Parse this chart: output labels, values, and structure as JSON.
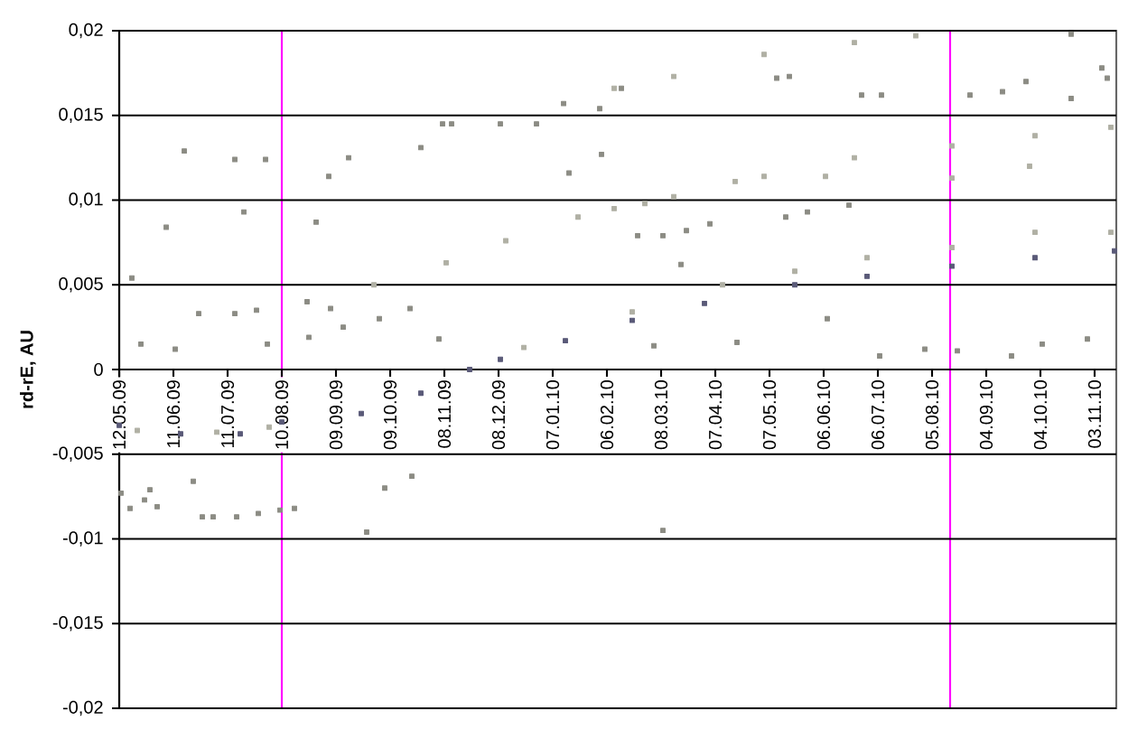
{
  "chart_data": {
    "type": "scatter",
    "ylabel": "rd-rE, AU",
    "marker": "square",
    "grid": "y",
    "xlim": [
      "2009-05-12",
      "2010-11-15"
    ],
    "xticks": [
      {
        "value": "2009-05-12",
        "label": "12.05.09"
      },
      {
        "value": "2009-06-11",
        "label": "11.06.09"
      },
      {
        "value": "2009-07-11",
        "label": "11.07.09"
      },
      {
        "value": "2009-08-10",
        "label": "10.08.09"
      },
      {
        "value": "2009-09-09",
        "label": "09.09.09"
      },
      {
        "value": "2009-10-09",
        "label": "09.10.09"
      },
      {
        "value": "2009-11-08",
        "label": "08.11.09"
      },
      {
        "value": "2009-12-08",
        "label": "08.12.09"
      },
      {
        "value": "2010-01-07",
        "label": "07.01.10"
      },
      {
        "value": "2010-02-06",
        "label": "06.02.10"
      },
      {
        "value": "2010-03-08",
        "label": "08.03.10"
      },
      {
        "value": "2010-04-07",
        "label": "07.04.10"
      },
      {
        "value": "2010-05-07",
        "label": "07.05.10"
      },
      {
        "value": "2010-06-06",
        "label": "06.06.10"
      },
      {
        "value": "2010-07-06",
        "label": "06.07.10"
      },
      {
        "value": "2010-08-05",
        "label": "05.08.10"
      },
      {
        "value": "2010-09-04",
        "label": "04.09.10"
      },
      {
        "value": "2010-10-04",
        "label": "04.10.10"
      },
      {
        "value": "2010-11-03",
        "label": "03.11.10"
      }
    ],
    "ylim": [
      -0.02,
      0.02
    ],
    "yticks": [
      {
        "value": -0.02,
        "label": "-0,02"
      },
      {
        "value": -0.015,
        "label": "-0,015"
      },
      {
        "value": -0.01,
        "label": "-0,01"
      },
      {
        "value": -0.005,
        "label": "-0,005"
      },
      0,
      {
        "value": 0.005,
        "label": "0,005"
      },
      {
        "value": 0.01,
        "label": "0,01"
      },
      {
        "value": 0.015,
        "label": "0,015"
      },
      {
        "value": 0.02,
        "label": "0,02"
      }
    ],
    "ref_lines": [
      {
        "axis": "x",
        "value": "2009-08-10",
        "color": "#ff00ff"
      },
      {
        "axis": "x",
        "value": "2010-08-15",
        "color": "#ff00ff"
      }
    ],
    "series": [
      {
        "color": "#5a5a78",
        "x": [
          "2009-05-12",
          "2009-06-15",
          "2009-07-18",
          "2009-08-10",
          "2009-09-23",
          "2009-10-26",
          "2009-11-22",
          "2009-12-09",
          "2010-01-14",
          "2010-02-20",
          "2010-04-01",
          "2010-05-21",
          "2010-06-30",
          "2010-08-16",
          "2010-10-01",
          "2010-11-14"
        ],
        "values": [
          -0.0033,
          -0.0038,
          -0.0038,
          -0.0031,
          -0.0026,
          -0.0014,
          0,
          0.0006,
          0.0017,
          0.0029,
          0.0039,
          0.005,
          0.0055,
          0.0061,
          0.0066,
          0.007
        ]
      },
      {
        "color": "#b0b0a4",
        "x": [
          "2009-05-22",
          "2009-07-05",
          "2009-08-03",
          "2009-12-22",
          "2010-02-20",
          "2010-04-11",
          "2010-05-21",
          "2010-06-30",
          "2010-08-16",
          "2010-10-01",
          "2010-11-12",
          "2009-09-30",
          "2009-11-09",
          "2009-12-12",
          "2010-01-21",
          "2010-02-10",
          "2010-03-15",
          "2010-05-04",
          "2010-06-23",
          "2010-08-16",
          "2010-10-01",
          "2010-11-12",
          "2010-02-27",
          "2010-04-18",
          "2010-06-07",
          "2010-08-16",
          "2010-09-28",
          "2010-02-10",
          "2010-03-15",
          "2010-05-04",
          "2010-06-23",
          "2010-07-27"
        ],
        "values": [
          -0.0036,
          -0.0037,
          -0.0034,
          0.0013,
          0.0034,
          0.005,
          0.0058,
          0.0066,
          0.0072,
          0.0081,
          0.0081,
          0.005,
          0.0063,
          0.0076,
          0.009,
          0.0095,
          0.0102,
          0.0114,
          0.0125,
          0.0132,
          0.0138,
          0.0143,
          0.0098,
          0.0111,
          0.0114,
          0.0113,
          0.012,
          0.0166,
          0.0173,
          0.0186,
          0.0193,
          0.0197
        ]
      },
      {
        "color": "#8c8c84",
        "x": [
          "2009-05-19",
          "2009-06-17",
          "2009-07-15",
          "2009-08-01",
          "2009-07-20",
          "2009-06-07",
          "2009-05-24",
          "2009-06-12",
          "2009-06-25",
          "2009-07-15",
          "2009-07-27",
          "2009-08-02",
          "2009-08-29",
          "2009-08-24",
          "2009-09-06",
          "2009-09-13",
          "2009-08-25",
          "2009-10-03",
          "2009-10-20",
          "2009-11-05",
          "2009-10-26",
          "2009-11-07",
          "2009-11-12",
          "2009-12-09",
          "2009-12-29",
          "2010-01-13",
          "2010-02-02",
          "2010-02-14",
          "2009-09-16",
          "2009-09-05",
          "2010-02-03",
          "2010-01-16",
          "2010-03-04",
          "2010-04-19",
          "2010-06-08",
          "2010-07-07",
          "2010-08-01",
          "2010-08-19",
          "2010-09-18",
          "2010-10-30",
          "2010-10-05",
          "2010-03-19",
          "2010-05-16",
          "2010-05-28",
          "2010-06-20",
          "2010-02-23",
          "2010-03-09",
          "2010-03-22",
          "2010-04-04",
          "2010-05-11",
          "2010-05-18",
          "2010-06-27",
          "2010-07-08",
          "2010-08-26",
          "2010-09-13",
          "2010-09-26",
          "2010-10-21",
          "2010-11-10",
          "2010-11-07",
          "2010-10-21",
          "2009-05-13",
          "2009-05-18",
          "2009-05-26",
          "2009-05-29",
          "2009-06-02",
          "2009-06-22",
          "2009-06-27",
          "2009-07-03",
          "2009-07-16",
          "2009-07-28",
          "2009-08-09",
          "2009-08-17",
          "2009-09-26",
          "2009-10-06",
          "2009-10-21",
          "2010-03-09"
        ],
        "values": [
          0.0054,
          0.0129,
          0.0124,
          0.0124,
          0.0093,
          0.0084,
          0.0015,
          0.0012,
          0.0033,
          0.0033,
          0.0035,
          0.0015,
          0.0087,
          0.004,
          0.0036,
          0.0025,
          0.0019,
          0.003,
          0.0036,
          0.0018,
          0.0131,
          0.0145,
          0.0145,
          0.0145,
          0.0145,
          0.0157,
          0.0154,
          0.0166,
          0.0125,
          0.0114,
          0.0127,
          0.0116,
          0.0014,
          0.0016,
          0.003,
          0.0008,
          0.0012,
          0.0011,
          0.0008,
          0.0018,
          0.0015,
          0.0062,
          0.009,
          0.0093,
          0.0097,
          0.0079,
          0.0079,
          0.0082,
          0.0086,
          0.0172,
          0.0173,
          0.0162,
          0.0162,
          0.0162,
          0.0164,
          0.017,
          0.016,
          0.0172,
          0.0178,
          0.0198,
          -0.0073,
          -0.0082,
          -0.0077,
          -0.0071,
          -0.0081,
          -0.0066,
          -0.0087,
          -0.0087,
          -0.0087,
          -0.0085,
          -0.0083,
          -0.0082,
          -0.0096,
          -0.007,
          -0.0063,
          -0.0095
        ]
      }
    ]
  }
}
